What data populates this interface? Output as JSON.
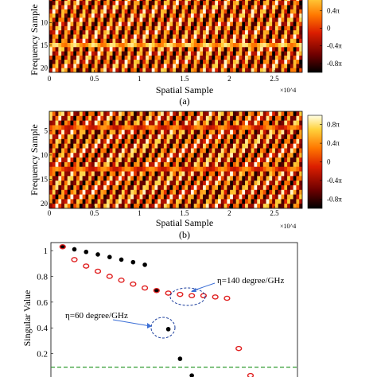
{
  "chart_data": [
    {
      "type": "heatmap",
      "panel_label": "(a)",
      "xlabel": "Spatial Sample",
      "ylabel": "Frequency Sample",
      "x_exponent": "×10^4",
      "xlim": [
        0,
        2.8
      ],
      "ylim": [
        1,
        21
      ],
      "x_ticks": [
        "0",
        "0.5",
        "1",
        "1.5",
        "2",
        "2.5"
      ],
      "x_tick_values": [
        0,
        0.5,
        1,
        1.5,
        2,
        2.5
      ],
      "y_ticks": [
        "10",
        "15",
        "20"
      ],
      "y_tick_values": [
        10,
        15,
        20
      ],
      "colorbar": {
        "labels": [
          "0.4π",
          "0",
          "-0.4π",
          "-0.8π"
        ],
        "values": [
          0.4,
          0,
          -0.4,
          -0.8
        ],
        "range": [
          -1,
          1
        ],
        "colors": [
          "#000000",
          "#6e0000",
          "#dc1e00",
          "#ff7800",
          "#ffd23c",
          "#ffffe6"
        ]
      }
    },
    {
      "type": "heatmap",
      "panel_label": "(b)",
      "xlabel": "Spatial Sample",
      "ylabel": "Frequency Sample",
      "x_exponent": "×10^4",
      "xlim": [
        0,
        2.8
      ],
      "ylim": [
        1,
        21
      ],
      "x_ticks": [
        "0",
        "0.5",
        "1",
        "1.5",
        "2",
        "2.5"
      ],
      "x_tick_values": [
        0,
        0.5,
        1,
        1.5,
        2,
        2.5
      ],
      "y_ticks": [
        "5",
        "10",
        "15",
        "20"
      ],
      "y_tick_values": [
        5,
        10,
        15,
        20
      ],
      "colorbar": {
        "labels": [
          "0.8π",
          "0.4π",
          "0",
          "-0.4π",
          "-0.8π"
        ],
        "values": [
          0.8,
          0.4,
          0,
          -0.4,
          -0.8
        ],
        "range": [
          -1,
          1
        ],
        "colors": [
          "#000000",
          "#6e0000",
          "#dc1e00",
          "#ff7800",
          "#ffd23c",
          "#ffffe6"
        ]
      }
    },
    {
      "type": "scatter",
      "ylabel": "Singular Value",
      "xlim": [
        0,
        21
      ],
      "ylim": [
        0,
        1.05
      ],
      "y_ticks": [
        "1",
        "0.8",
        "0.6",
        "0.4",
        "0.2"
      ],
      "y_tick_values": [
        1,
        0.8,
        0.6,
        0.4,
        0.2
      ],
      "threshold": {
        "y": 0.095,
        "color": "#2f9a2f"
      },
      "series": [
        {
          "name": "η=60 degree/GHz",
          "marker": "filled",
          "color": "#000000",
          "x": [
            1,
            2,
            3,
            4,
            5,
            6,
            7,
            8,
            9,
            10,
            11,
            12
          ],
          "y": [
            1.03,
            1.01,
            0.99,
            0.97,
            0.95,
            0.93,
            0.91,
            0.89,
            0.69,
            0.39,
            0.16,
            0.03
          ]
        },
        {
          "name": "η=140 degree/GHz",
          "marker": "open",
          "color": "#e02020",
          "x": [
            1,
            2,
            3,
            4,
            5,
            6,
            7,
            8,
            9,
            10,
            11,
            12,
            13,
            14,
            15,
            16,
            17
          ],
          "y": [
            1.03,
            0.93,
            0.88,
            0.84,
            0.8,
            0.77,
            0.74,
            0.71,
            0.69,
            0.67,
            0.66,
            0.65,
            0.65,
            0.64,
            0.63,
            0.24,
            0.03
          ]
        }
      ]
    }
  ]
}
